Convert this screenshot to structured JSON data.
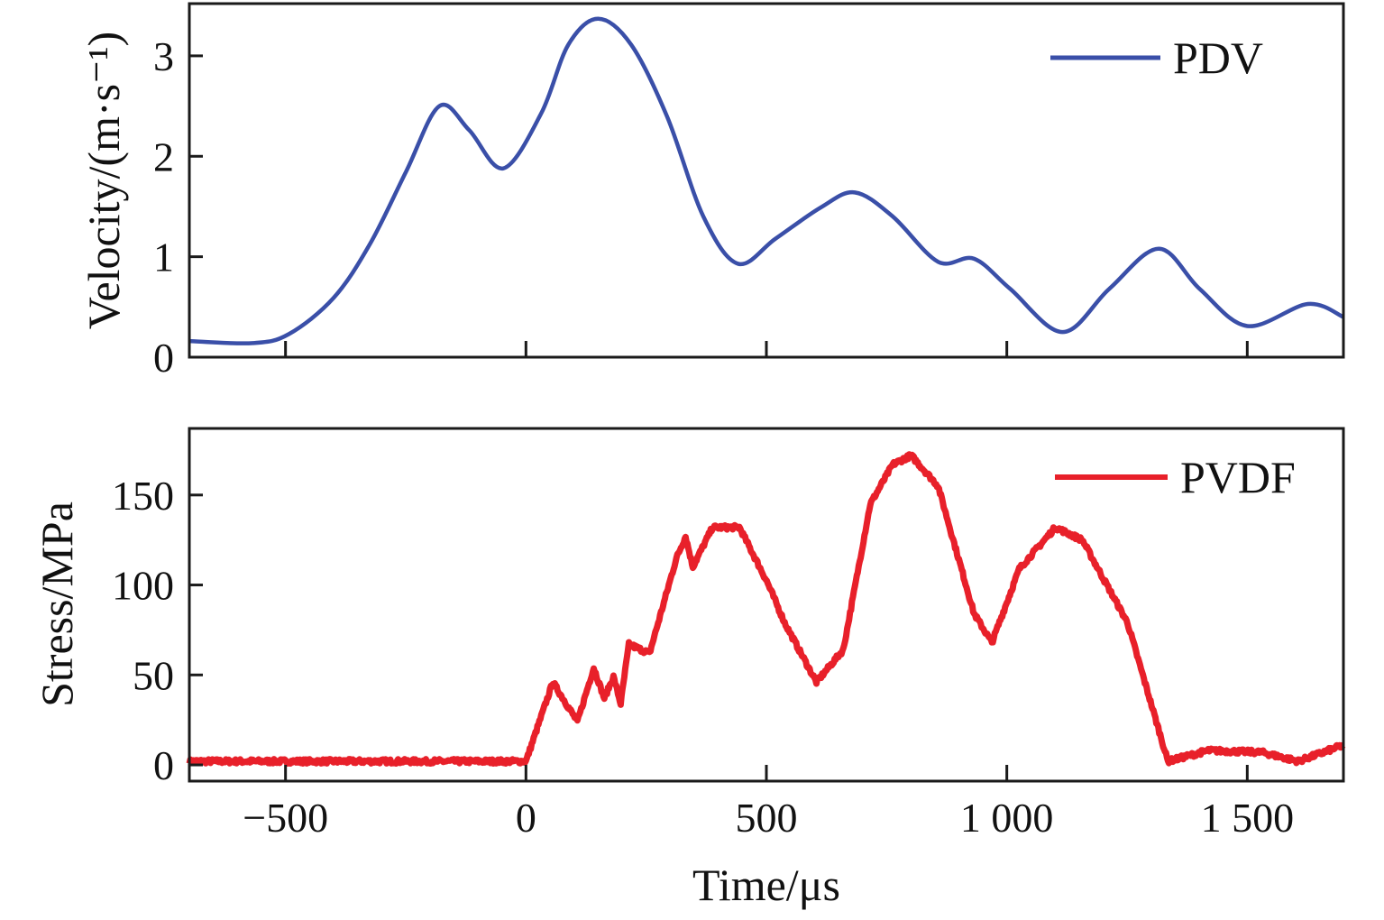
{
  "chart_data": [
    {
      "type": "line",
      "ylabel": "Velocity/(m·s⁻¹)",
      "xlim": [
        -700,
        1700
      ],
      "ylim": [
        0,
        3.52
      ],
      "yticks": [
        0,
        1,
        2,
        3
      ],
      "xticks": [
        -500,
        0,
        500,
        1000,
        1500
      ],
      "legend_position": "top-right",
      "grid": false,
      "series": [
        {
          "name": "PDV",
          "color": "#3a4fa8",
          "x": [
            -700,
            -568,
            -493,
            -400,
            -324,
            -249,
            -180,
            -118,
            -47,
            32,
            88,
            150,
            219,
            294,
            369,
            441,
            519,
            613,
            684,
            763,
            857,
            932,
            1007,
            1116,
            1213,
            1316,
            1401,
            1500,
            1626,
            1700
          ],
          "y": [
            0.16,
            0.14,
            0.23,
            0.59,
            1.13,
            1.85,
            2.5,
            2.26,
            1.88,
            2.43,
            3.11,
            3.37,
            3.11,
            2.39,
            1.4,
            0.93,
            1.18,
            1.49,
            1.64,
            1.4,
            0.95,
            0.98,
            0.68,
            0.25,
            0.68,
            1.08,
            0.68,
            0.31,
            0.53,
            0.4
          ]
        }
      ]
    },
    {
      "type": "line",
      "xlabel": "Time/μs",
      "ylabel": "Stress/MPa",
      "xlim": [
        -700,
        1700
      ],
      "ylim": [
        -9,
        187
      ],
      "yticks": [
        0,
        50,
        100,
        150
      ],
      "xticks": [
        -500,
        0,
        500,
        1000,
        1500
      ],
      "xtick_labels": [
        "−500",
        "0",
        "500",
        "1 000",
        "1 500"
      ],
      "legend_position": "top-right",
      "grid": false,
      "series": [
        {
          "name": "PVDF",
          "color": "#e8202a",
          "x": [
            -700,
            -400,
            -100,
            0,
            56,
            107,
            141,
            163,
            182,
            197,
            214,
            257,
            313,
            332,
            347,
            388,
            444,
            501,
            538,
            604,
            660,
            716,
            763,
            801,
            857,
            932,
            969,
            1026,
            1101,
            1157,
            1251,
            1335,
            1419,
            1531,
            1606,
            1700
          ],
          "y": [
            2,
            2,
            2,
            2,
            46,
            24,
            54,
            37,
            49,
            34,
            67,
            62,
            115,
            127,
            110,
            132,
            132,
            102,
            79,
            46,
            64,
            145,
            167,
            172,
            155,
            84,
            68,
            109,
            132,
            125,
            79,
            2,
            8,
            7,
            2,
            11
          ]
        }
      ]
    }
  ]
}
